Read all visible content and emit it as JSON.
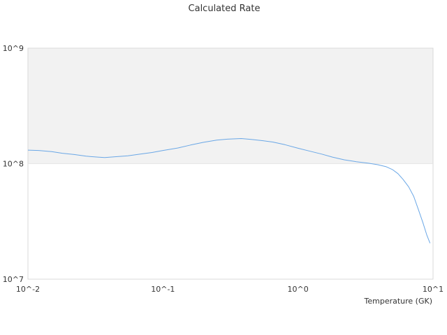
{
  "chart_data": {
    "type": "line",
    "title": "Calculated Rate",
    "xlabel": "Temperature (GK)",
    "ylabel": "",
    "x_scale": "log",
    "y_scale": "log",
    "xlim": [
      0.01,
      10
    ],
    "ylim": [
      10000000,
      1000000000
    ],
    "x_tick_labels": [
      "10^-2",
      "10^-1",
      "10^0",
      "10^1"
    ],
    "y_tick_labels": [
      "10^7",
      "10^8",
      "10^9"
    ],
    "alternating_band_color": "#f2f2f2",
    "series": [
      {
        "color": "#6aa7e6",
        "x": [
          0.01,
          0.012,
          0.015,
          0.018,
          0.022,
          0.027,
          0.033,
          0.037,
          0.045,
          0.055,
          0.068,
          0.083,
          0.1,
          0.13,
          0.16,
          0.2,
          0.25,
          0.3,
          0.38,
          0.45,
          0.55,
          0.65,
          0.8,
          1.0,
          1.2,
          1.5,
          1.8,
          2.2,
          2.7,
          3.3,
          3.9,
          4.5,
          5.0,
          5.5,
          6.0,
          6.6,
          7.2,
          7.8,
          8.4,
          9.0,
          9.5
        ],
        "y": [
          131000000,
          130000000,
          127000000,
          123000000,
          120000000,
          116000000,
          114000000,
          113000000,
          115000000,
          117000000,
          121000000,
          125000000,
          130000000,
          137000000,
          145000000,
          153000000,
          160000000,
          163000000,
          165000000,
          162000000,
          158000000,
          154000000,
          146000000,
          136000000,
          129000000,
          121000000,
          114000000,
          108000000,
          104000000,
          101000000,
          98000000,
          94000000,
          89000000,
          82000000,
          73000000,
          63000000,
          52000000,
          40000000,
          31000000,
          24000000,
          20500000
        ]
      }
    ]
  }
}
